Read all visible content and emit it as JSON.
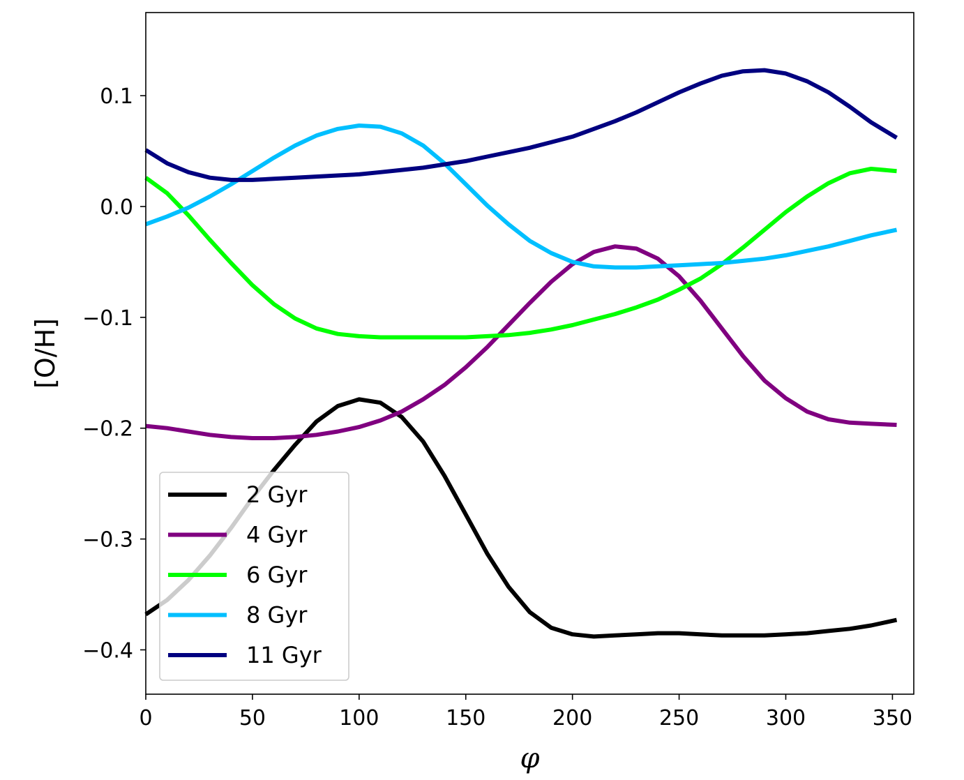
{
  "chart_data": {
    "type": "line",
    "xlabel": "φ",
    "ylabel": "[O/H]",
    "xlim": [
      0,
      360
    ],
    "ylim": [
      -0.44,
      0.175
    ],
    "xticks": [
      0,
      50,
      100,
      150,
      200,
      250,
      300,
      350
    ],
    "xtick_labels": [
      "0",
      "50",
      "100",
      "150",
      "200",
      "250",
      "300",
      "350"
    ],
    "yticks": [
      0.1,
      0.0,
      -0.1,
      -0.2,
      -0.3,
      -0.4
    ],
    "ytick_labels": [
      "0.1",
      "0.0",
      "−0.1",
      "−0.2",
      "−0.3",
      "−0.4"
    ],
    "grid": false,
    "legend_position": "lower-left",
    "x": [
      0,
      10,
      20,
      30,
      40,
      50,
      60,
      70,
      80,
      90,
      100,
      110,
      120,
      130,
      140,
      150,
      160,
      170,
      180,
      190,
      200,
      210,
      220,
      230,
      240,
      250,
      260,
      270,
      280,
      290,
      300,
      310,
      320,
      330,
      340,
      352
    ],
    "series": [
      {
        "name": "2 Gyr",
        "color": "#000000",
        "values": [
          -0.368,
          -0.355,
          -0.337,
          -0.315,
          -0.29,
          -0.263,
          -0.238,
          -0.215,
          -0.194,
          -0.18,
          -0.174,
          -0.177,
          -0.19,
          -0.212,
          -0.243,
          -0.278,
          -0.313,
          -0.343,
          -0.366,
          -0.38,
          -0.386,
          -0.388,
          -0.387,
          -0.386,
          -0.385,
          -0.385,
          -0.386,
          -0.387,
          -0.387,
          -0.387,
          -0.386,
          -0.385,
          -0.383,
          -0.381,
          -0.378,
          -0.373
        ]
      },
      {
        "name": "4 Gyr",
        "color": "#800080",
        "values": [
          -0.198,
          -0.2,
          -0.203,
          -0.206,
          -0.208,
          -0.209,
          -0.209,
          -0.208,
          -0.206,
          -0.203,
          -0.199,
          -0.193,
          -0.185,
          -0.174,
          -0.161,
          -0.145,
          -0.127,
          -0.107,
          -0.087,
          -0.068,
          -0.052,
          -0.041,
          -0.036,
          -0.038,
          -0.047,
          -0.063,
          -0.085,
          -0.11,
          -0.135,
          -0.157,
          -0.173,
          -0.185,
          -0.192,
          -0.195,
          -0.196,
          -0.197
        ]
      },
      {
        "name": "6 Gyr",
        "color": "#00ff00",
        "values": [
          0.026,
          0.012,
          -0.008,
          -0.03,
          -0.051,
          -0.071,
          -0.088,
          -0.101,
          -0.11,
          -0.115,
          -0.117,
          -0.118,
          -0.118,
          -0.118,
          -0.118,
          -0.118,
          -0.117,
          -0.116,
          -0.114,
          -0.111,
          -0.107,
          -0.102,
          -0.097,
          -0.091,
          -0.084,
          -0.075,
          -0.065,
          -0.052,
          -0.037,
          -0.021,
          -0.005,
          0.009,
          0.021,
          0.03,
          0.034,
          0.032
        ]
      },
      {
        "name": "8 Gyr",
        "color": "#00bfff",
        "values": [
          -0.016,
          -0.009,
          -0.001,
          0.009,
          0.02,
          0.032,
          0.044,
          0.055,
          0.064,
          0.07,
          0.073,
          0.072,
          0.066,
          0.055,
          0.039,
          0.02,
          0.001,
          -0.016,
          -0.031,
          -0.042,
          -0.05,
          -0.054,
          -0.055,
          -0.055,
          -0.054,
          -0.053,
          -0.052,
          -0.051,
          -0.049,
          -0.047,
          -0.044,
          -0.04,
          -0.036,
          -0.031,
          -0.026,
          -0.021
        ]
      },
      {
        "name": "11 Gyr",
        "color": "#000080",
        "values": [
          0.051,
          0.039,
          0.031,
          0.026,
          0.024,
          0.024,
          0.025,
          0.026,
          0.027,
          0.028,
          0.029,
          0.031,
          0.033,
          0.035,
          0.038,
          0.041,
          0.045,
          0.049,
          0.053,
          0.058,
          0.063,
          0.07,
          0.077,
          0.085,
          0.094,
          0.103,
          0.111,
          0.118,
          0.122,
          0.123,
          0.12,
          0.113,
          0.103,
          0.09,
          0.076,
          0.062
        ]
      }
    ]
  }
}
